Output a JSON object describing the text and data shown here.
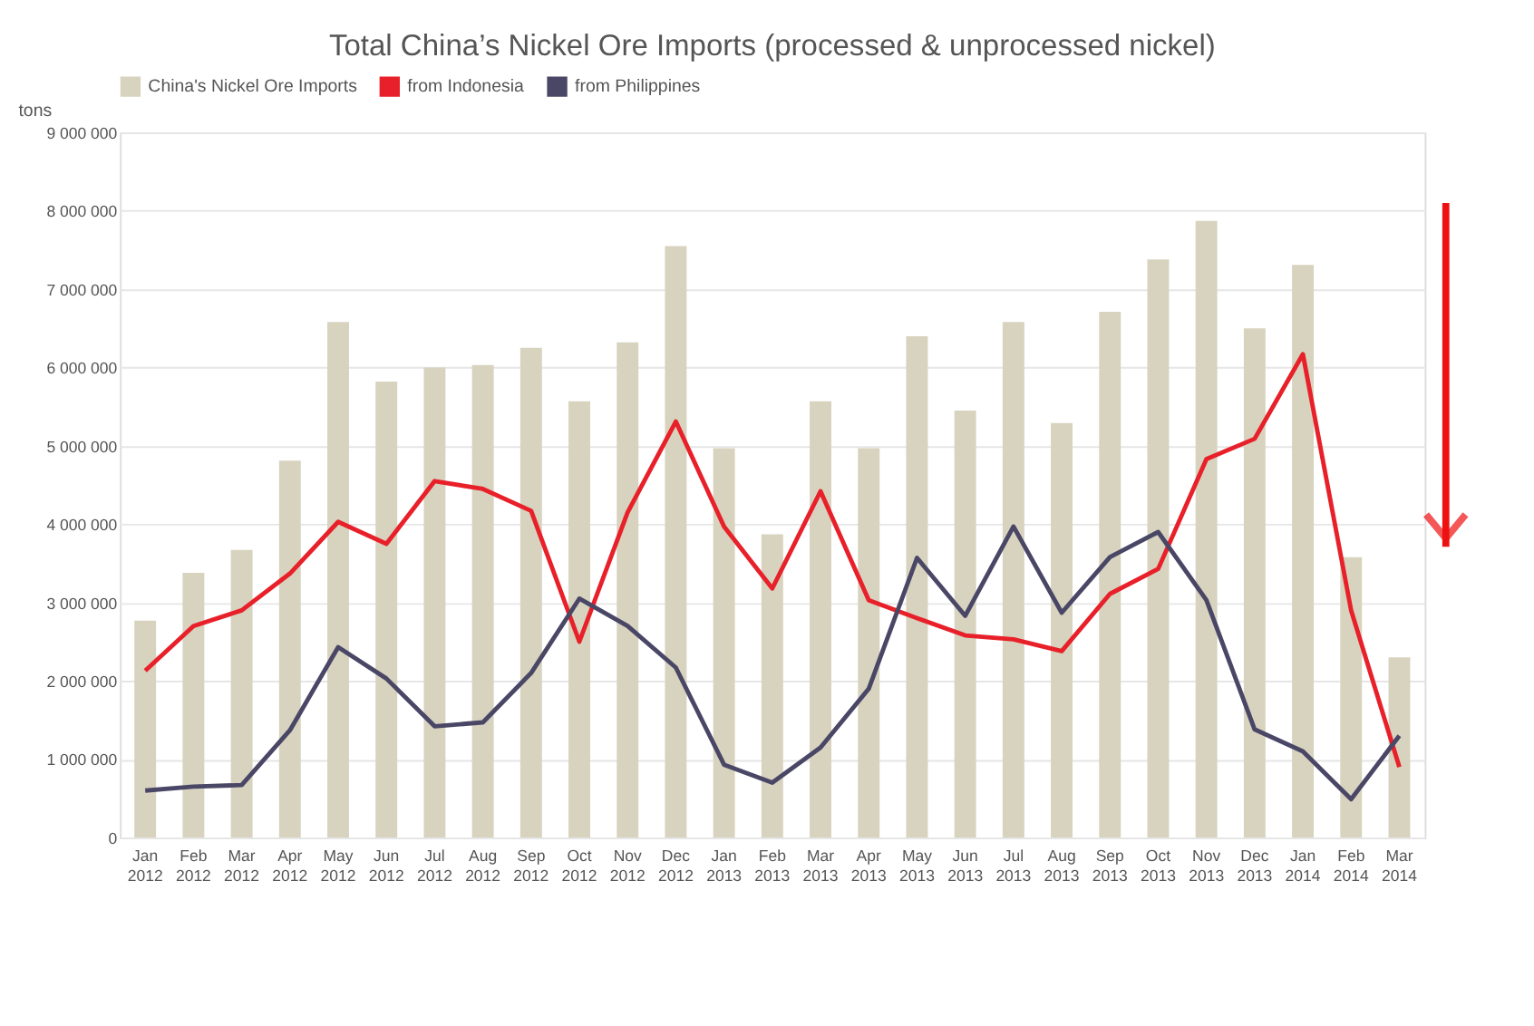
{
  "chart_data": {
    "type": "bar",
    "title": "Total China’s Nickel Ore Imports (processed & unprocessed nickel)",
    "ylabel": "tons",
    "categories": [
      "Jan 2012",
      "Feb 2012",
      "Mar 2012",
      "Apr 2012",
      "May 2012",
      "Jun 2012",
      "Jul 2012",
      "Aug 2012",
      "Sep 2012",
      "Oct 2012",
      "Nov 2012",
      "Dec 2012",
      "Jan 2013",
      "Feb 2013",
      "Mar 2013",
      "Apr 2013",
      "May 2013",
      "Jun 2013",
      "Jul 2013",
      "Aug 2013",
      "Sep 2013",
      "Oct 2013",
      "Nov 2013",
      "Dec 2013",
      "Jan 2014",
      "Feb 2014",
      "Mar 2014"
    ],
    "series": [
      {
        "name": "China's Nickel Ore Imports",
        "color": "#d8d3bf",
        "values": [
          2770000,
          3380000,
          3670000,
          4810000,
          6580000,
          5820000,
          6000000,
          6030000,
          6250000,
          5570000,
          6320000,
          7550000,
          4970000,
          3870000,
          5570000,
          4970000,
          6400000,
          5450000,
          6580000,
          5290000,
          6710000,
          7380000,
          7870000,
          6500000,
          7310000,
          3580000,
          2300000
        ]
      },
      {
        "name": "from Indonesia",
        "type": "line",
        "color": "#e8202a",
        "values": [
          2130000,
          2700000,
          2900000,
          3370000,
          4030000,
          3750000,
          4550000,
          4450000,
          4170000,
          2500000,
          4150000,
          5310000,
          3970000,
          3180000,
          4420000,
          3030000,
          2800000,
          2580000,
          2530000,
          2380000,
          3110000,
          3430000,
          4830000,
          5090000,
          6170000,
          2900000,
          900000
        ]
      },
      {
        "name": "from Philippines",
        "type": "line",
        "color": "#4a4766",
        "values": [
          600000,
          650000,
          670000,
          1370000,
          2430000,
          2030000,
          1420000,
          1470000,
          2100000,
          3050000,
          2700000,
          2170000,
          930000,
          700000,
          1150000,
          1900000,
          3570000,
          2830000,
          3970000,
          2870000,
          3580000,
          3900000,
          3030000,
          1380000,
          1100000,
          490000,
          1300000
        ]
      }
    ],
    "ylim": [
      0,
      9000000
    ],
    "yticks": [
      0,
      1000000,
      2000000,
      3000000,
      4000000,
      5000000,
      6000000,
      7000000,
      8000000,
      9000000
    ],
    "grid": "y",
    "legend": "top"
  }
}
